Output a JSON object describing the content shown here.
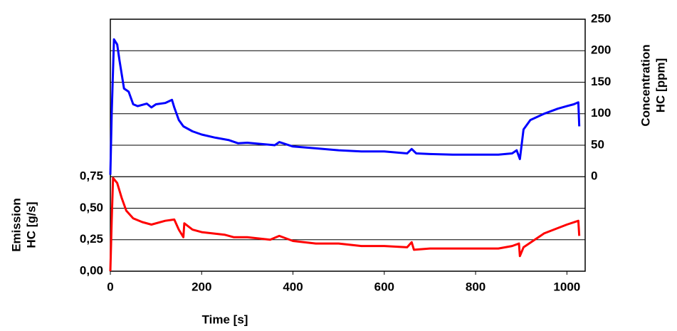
{
  "chart_data": {
    "type": "line",
    "x_label": "Time [s]",
    "y_label": [
      "Emission",
      "HC [g/s]"
    ],
    "y2_label": [
      "Concentration",
      "HC [ppm]"
    ],
    "xlim": [
      0,
      1040
    ],
    "xticks": [
      0,
      200,
      400,
      600,
      800,
      1000
    ],
    "ylim": [
      0,
      2
    ],
    "yticks": [
      {
        "value": 0,
        "label": "0,00"
      },
      {
        "value": 0.25,
        "label": "0,25"
      },
      {
        "value": 0.5,
        "label": "0,50"
      },
      {
        "value": 0.75,
        "label": "0,75"
      }
    ],
    "y2lim": [
      -150,
      250
    ],
    "y2ticks": [
      0,
      50,
      100,
      150,
      200,
      250
    ],
    "grid": true,
    "series": [
      {
        "color": "#0000ff",
        "axis": "y2",
        "x": [
          0,
          3,
          8,
          15,
          20,
          30,
          40,
          50,
          60,
          80,
          90,
          100,
          120,
          135,
          140,
          150,
          160,
          180,
          200,
          230,
          260,
          280,
          300,
          330,
          360,
          370,
          400,
          450,
          500,
          550,
          600,
          650,
          660,
          670,
          700,
          750,
          800,
          850,
          880,
          890,
          897,
          905,
          920,
          950,
          980,
          1000,
          1015,
          1025,
          1027
        ],
        "values": [
          3,
          100,
          218,
          210,
          185,
          140,
          135,
          115,
          112,
          116,
          110,
          115,
          117,
          122,
          110,
          90,
          80,
          72,
          67,
          62,
          58,
          53,
          54,
          52,
          50,
          55,
          48,
          45,
          42,
          40,
          40,
          37,
          44,
          37,
          36,
          35,
          35,
          35,
          37,
          42,
          28,
          75,
          90,
          100,
          108,
          112,
          115,
          118,
          80
        ]
      },
      {
        "color": "#ff0000",
        "axis": "y",
        "x": [
          0,
          3,
          6,
          15,
          25,
          35,
          50,
          70,
          90,
          120,
          140,
          150,
          160,
          162,
          180,
          200,
          250,
          270,
          300,
          350,
          370,
          400,
          450,
          500,
          550,
          600,
          650,
          660,
          665,
          700,
          750,
          800,
          850,
          880,
          895,
          897,
          905,
          950,
          1000,
          1025,
          1027
        ],
        "values": [
          0,
          0.4,
          0.74,
          0.7,
          0.58,
          0.48,
          0.42,
          0.39,
          0.37,
          0.4,
          0.41,
          0.33,
          0.27,
          0.38,
          0.33,
          0.31,
          0.29,
          0.27,
          0.27,
          0.25,
          0.28,
          0.24,
          0.22,
          0.22,
          0.2,
          0.2,
          0.19,
          0.23,
          0.17,
          0.18,
          0.18,
          0.18,
          0.18,
          0.2,
          0.22,
          0.12,
          0.19,
          0.3,
          0.37,
          0.4,
          0.28
        ]
      }
    ]
  }
}
